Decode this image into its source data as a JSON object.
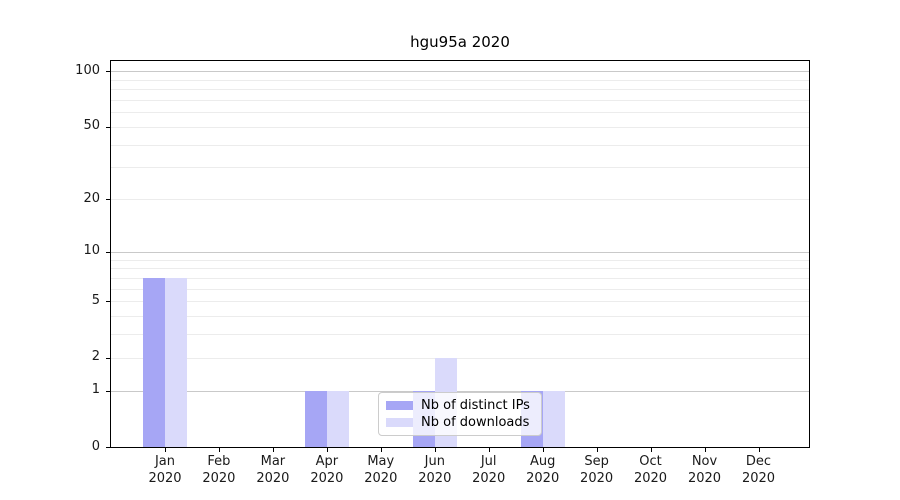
{
  "title": "hgu95a 2020",
  "chart_data": {
    "type": "bar",
    "title": "hgu95a 2020",
    "y_scale": "log10(1+y)",
    "categories": [
      "Jan",
      "Feb",
      "Mar",
      "Apr",
      "May",
      "Jun",
      "Jul",
      "Aug",
      "Sep",
      "Oct",
      "Nov",
      "Dec"
    ],
    "x_year_label": "2020",
    "series": [
      {
        "name": "Nb of distinct IPs",
        "color": "#a6a6f5",
        "values": [
          7,
          0,
          0,
          1,
          0,
          1,
          0,
          1,
          0,
          0,
          0,
          0
        ]
      },
      {
        "name": "Nb of downloads",
        "color": "#dadafb",
        "values": [
          7,
          0,
          0,
          1,
          0,
          2,
          0,
          1,
          0,
          0,
          0,
          0
        ]
      }
    ],
    "y_ticks": [
      0,
      1,
      2,
      5,
      10,
      20,
      50,
      100
    ],
    "ylim": [
      0,
      115
    ],
    "grid": {
      "decade_lines": [
        1,
        10,
        100
      ],
      "minor_lines": [
        2,
        3,
        4,
        5,
        6,
        7,
        8,
        9,
        20,
        30,
        40,
        50,
        60,
        70,
        80,
        90
      ],
      "decade_color": "#c9c9c9",
      "minor_color": "#ececec"
    },
    "legend_position": "inside-bottom-center"
  }
}
